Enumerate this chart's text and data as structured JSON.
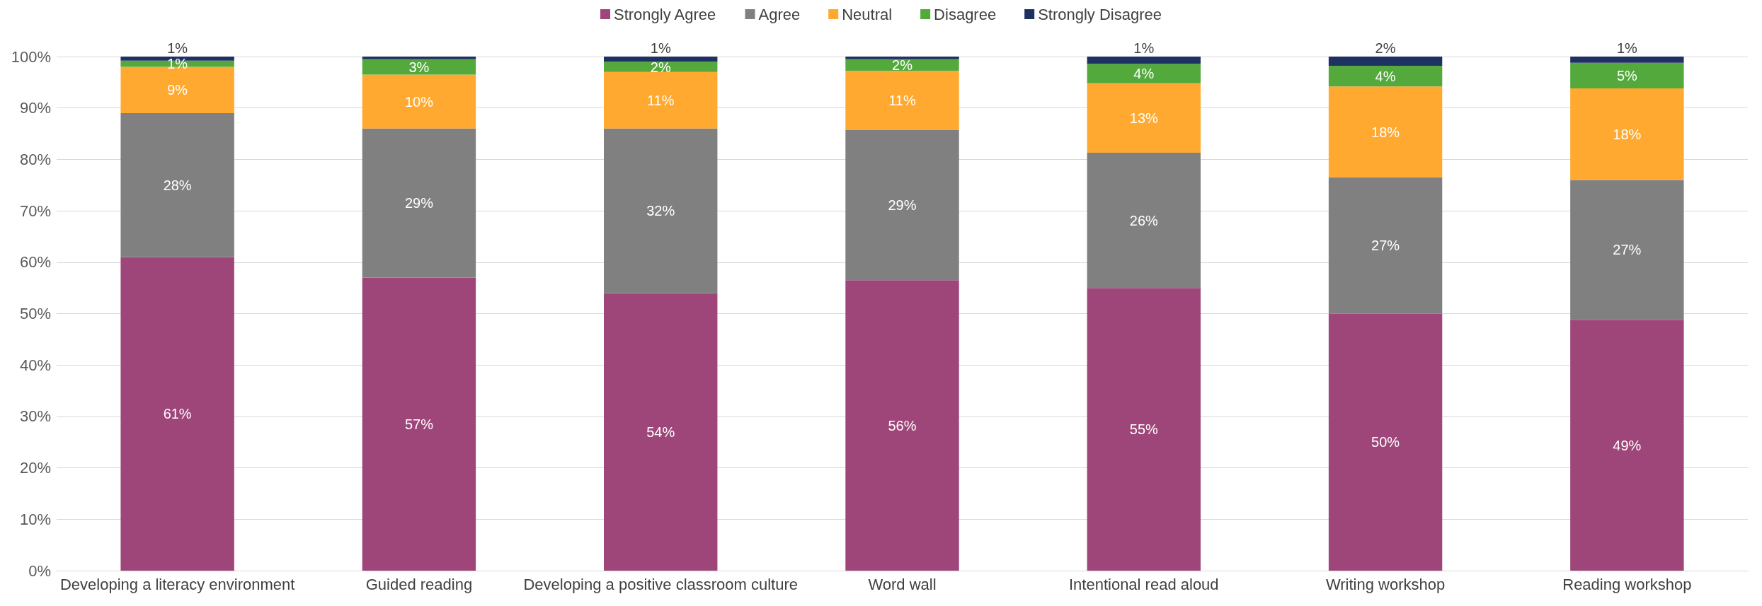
{
  "chart_data": {
    "type": "bar",
    "stacked": true,
    "categories": [
      "Developing a literacy environment",
      "Guided reading",
      "Developing a positive classroom culture",
      "Word wall",
      "Intentional read aloud",
      "Writing workshop",
      "Reading workshop"
    ],
    "series": [
      {
        "name": "Strongly Agree",
        "color": "#9e4679",
        "values": [
          61,
          57,
          54,
          56.5,
          55,
          50,
          48.8
        ],
        "value_labels": [
          "61%",
          "57%",
          "54%",
          "56%",
          "55%",
          "50%",
          "49%"
        ]
      },
      {
        "name": "Agree",
        "color": "#808080",
        "values": [
          28,
          29,
          32,
          29.2,
          26.3,
          26.5,
          27.2
        ],
        "value_labels": [
          "28%",
          "29%",
          "32%",
          "29%",
          "26%",
          "27%",
          "27%"
        ]
      },
      {
        "name": "Neutral",
        "color": "#ffa930",
        "values": [
          9,
          10.5,
          11,
          11.5,
          13.5,
          17.7,
          17.8
        ],
        "value_labels": [
          "9%",
          "10%",
          "11%",
          "11%",
          "13%",
          "18%",
          "18%"
        ]
      },
      {
        "name": "Disagree",
        "color": "#53a93c",
        "values": [
          1.2,
          3,
          2,
          2.3,
          3.8,
          4,
          5
        ],
        "value_labels": [
          "1%",
          "3%",
          "2%",
          "2%",
          "4%",
          "4%",
          "5%"
        ]
      },
      {
        "name": "Strongly Disagree",
        "color": "#1f3160",
        "values": [
          0.8,
          0.5,
          1,
          0.5,
          1.4,
          1.8,
          1.2
        ],
        "value_labels": [
          "1%",
          null,
          "1%",
          null,
          "1%",
          "2%",
          "1%"
        ]
      }
    ],
    "ylim": [
      0,
      100
    ],
    "yticks": [
      {
        "value": 0,
        "label": "0%"
      },
      {
        "value": 10,
        "label": "10%"
      },
      {
        "value": 20,
        "label": "20%"
      },
      {
        "value": 30,
        "label": "30%"
      },
      {
        "value": 40,
        "label": "40%"
      },
      {
        "value": 50,
        "label": "50%"
      },
      {
        "value": 60,
        "label": "60%"
      },
      {
        "value": 70,
        "label": "70%"
      },
      {
        "value": 80,
        "label": "80%"
      },
      {
        "value": 90,
        "label": "90%"
      },
      {
        "value": 100,
        "label": "100%"
      }
    ],
    "grid": "y",
    "legend": "top"
  }
}
